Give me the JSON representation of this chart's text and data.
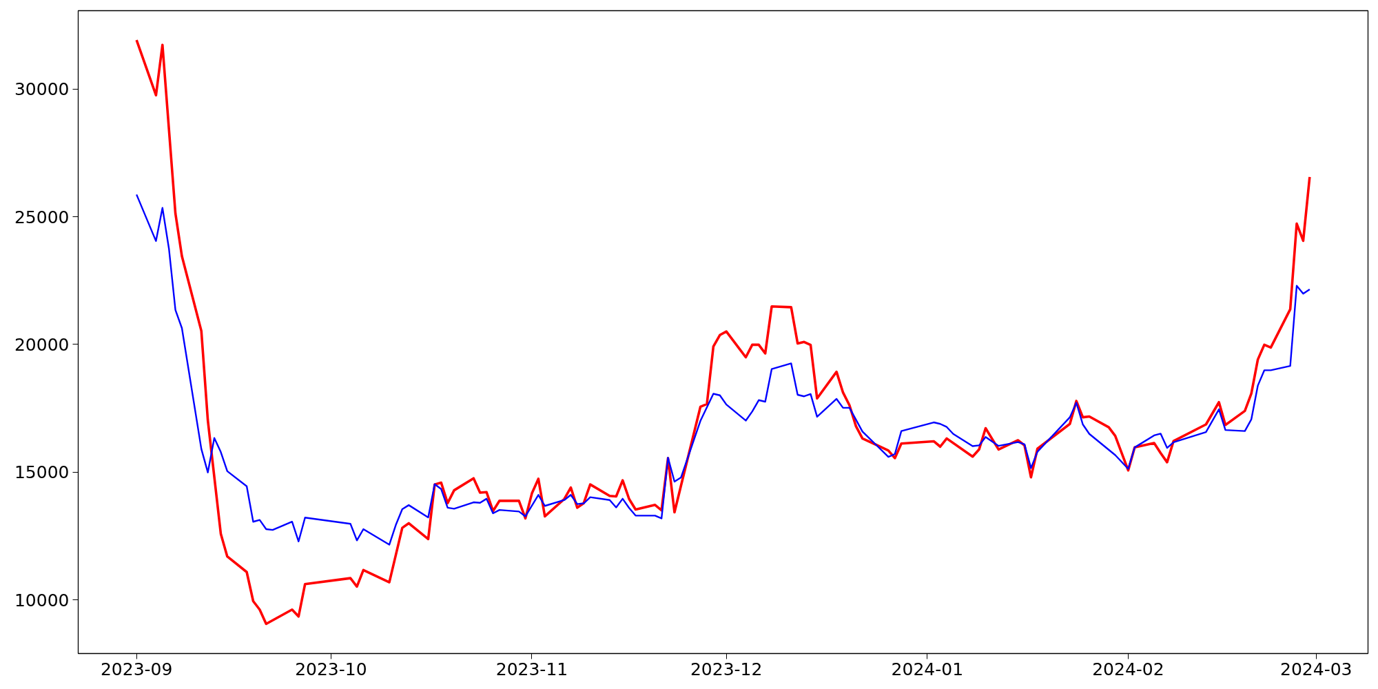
{
  "chart_data": {
    "type": "line",
    "xlim": [
      "2023-08-23",
      "2024-03-09"
    ],
    "xticks": [
      {
        "value": "2023-09-01",
        "label": "2023-09"
      },
      {
        "value": "2023-10-01",
        "label": "2023-10"
      },
      {
        "value": "2023-11-01",
        "label": "2023-11"
      },
      {
        "value": "2023-12-01",
        "label": "2023-12"
      },
      {
        "value": "2024-01-01",
        "label": "2024-01"
      },
      {
        "value": "2024-02-01",
        "label": "2024-02"
      },
      {
        "value": "2024-03-01",
        "label": "2024-03"
      }
    ],
    "ylim": [
      7900,
      33070
    ],
    "yticks": [
      10000,
      15000,
      20000,
      25000,
      30000
    ],
    "grid": false,
    "marker": "none",
    "line_style": "solid",
    "series": [
      {
        "color": "#ff0000",
        "x": [
          "2023-09-01",
          "2023-09-04",
          "2023-09-05",
          "2023-09-07",
          "2023-09-08",
          "2023-09-11",
          "2023-09-12",
          "2023-09-14",
          "2023-09-15",
          "2023-09-18",
          "2023-09-19",
          "2023-09-20",
          "2023-09-21",
          "2023-09-25",
          "2023-09-26",
          "2023-09-27",
          "2023-10-04",
          "2023-10-05",
          "2023-10-06",
          "2023-10-10",
          "2023-10-12",
          "2023-10-13",
          "2023-10-16",
          "2023-10-17",
          "2023-10-18",
          "2023-10-19",
          "2023-10-20",
          "2023-10-23",
          "2023-10-24",
          "2023-10-25",
          "2023-10-26",
          "2023-10-27",
          "2023-10-30",
          "2023-10-31",
          "2023-11-01",
          "2023-11-02",
          "2023-11-03",
          "2023-11-06",
          "2023-11-07",
          "2023-11-08",
          "2023-11-09",
          "2023-11-10",
          "2023-11-13",
          "2023-11-14",
          "2023-11-15",
          "2023-11-16",
          "2023-11-17",
          "2023-11-20",
          "2023-11-21",
          "2023-11-22",
          "2023-11-23",
          "2023-11-24",
          "2023-11-27",
          "2023-11-28",
          "2023-11-29",
          "2023-11-30",
          "2023-12-01",
          "2023-12-04",
          "2023-12-05",
          "2023-12-06",
          "2023-12-07",
          "2023-12-08",
          "2023-12-11",
          "2023-12-12",
          "2023-12-13",
          "2023-12-14",
          "2023-12-15",
          "2023-12-18",
          "2023-12-19",
          "2023-12-20",
          "2023-12-21",
          "2023-12-22",
          "2023-12-26",
          "2023-12-27",
          "2023-12-28",
          "2024-01-02",
          "2024-01-03",
          "2024-01-04",
          "2024-01-08",
          "2024-01-09",
          "2024-01-10",
          "2024-01-12",
          "2024-01-15",
          "2024-01-16",
          "2024-01-17",
          "2024-01-18",
          "2024-01-23",
          "2024-01-24",
          "2024-01-25",
          "2024-01-26",
          "2024-01-29",
          "2024-01-30",
          "2024-02-01",
          "2024-02-02",
          "2024-02-05",
          "2024-02-06",
          "2024-02-07",
          "2024-02-08",
          "2024-02-13",
          "2024-02-15",
          "2024-02-16",
          "2024-02-19",
          "2024-02-20",
          "2024-02-21",
          "2024-02-22",
          "2024-02-23",
          "2024-02-26",
          "2024-02-27",
          "2024-02-28",
          "2024-02-29"
        ],
        "values": [
          31920,
          29760,
          31730,
          25130,
          23460,
          20530,
          17030,
          12590,
          11700,
          11090,
          9950,
          9620,
          9060,
          9620,
          9350,
          10620,
          10850,
          10520,
          11170,
          10690,
          12820,
          13000,
          12380,
          14520,
          14590,
          13790,
          14290,
          14760,
          14200,
          14220,
          13480,
          13880,
          13880,
          13190,
          14170,
          14740,
          13270,
          13950,
          14400,
          13610,
          13790,
          14520,
          14070,
          14050,
          14680,
          13950,
          13540,
          13720,
          13510,
          15550,
          13430,
          14470,
          17560,
          17670,
          19920,
          20370,
          20510,
          19500,
          19990,
          19990,
          19650,
          21490,
          21460,
          20040,
          20100,
          19980,
          17890,
          18930,
          18120,
          17620,
          16800,
          16320,
          15850,
          15550,
          16120,
          16210,
          16000,
          16320,
          15610,
          15890,
          16720,
          15890,
          16250,
          16050,
          14800,
          15920,
          16890,
          17790,
          17150,
          17180,
          16760,
          16420,
          15070,
          15970,
          16140,
          15750,
          15390,
          16220,
          16870,
          17740,
          16850,
          17400,
          18080,
          19410,
          19990,
          19880,
          21380,
          24730,
          24060,
          26560
        ]
      },
      {
        "color": "#0000ff",
        "x": [
          "2023-09-01",
          "2023-09-04",
          "2023-09-05",
          "2023-09-06",
          "2023-09-07",
          "2023-09-08",
          "2023-09-11",
          "2023-09-12",
          "2023-09-13",
          "2023-09-14",
          "2023-09-15",
          "2023-09-18",
          "2023-09-19",
          "2023-09-20",
          "2023-09-21",
          "2023-09-22",
          "2023-09-25",
          "2023-09-26",
          "2023-09-27",
          "2023-10-04",
          "2023-10-05",
          "2023-10-06",
          "2023-10-10",
          "2023-10-11",
          "2023-10-12",
          "2023-10-13",
          "2023-10-16",
          "2023-10-17",
          "2023-10-18",
          "2023-10-19",
          "2023-10-20",
          "2023-10-23",
          "2023-10-24",
          "2023-10-25",
          "2023-10-26",
          "2023-10-27",
          "2023-10-30",
          "2023-10-31",
          "2023-11-02",
          "2023-11-03",
          "2023-11-06",
          "2023-11-07",
          "2023-11-08",
          "2023-11-09",
          "2023-11-10",
          "2023-11-13",
          "2023-11-14",
          "2023-11-15",
          "2023-11-16",
          "2023-11-17",
          "2023-11-20",
          "2023-11-21",
          "2023-11-22",
          "2023-11-23",
          "2023-11-24",
          "2023-11-27",
          "2023-11-29",
          "2023-11-30",
          "2023-12-01",
          "2023-12-04",
          "2023-12-05",
          "2023-12-06",
          "2023-12-07",
          "2023-12-08",
          "2023-12-11",
          "2023-12-12",
          "2023-12-13",
          "2023-12-14",
          "2023-12-15",
          "2023-12-18",
          "2023-12-19",
          "2023-12-20",
          "2023-12-22",
          "2023-12-26",
          "2023-12-27",
          "2023-12-28",
          "2024-01-02",
          "2024-01-03",
          "2024-01-04",
          "2024-01-05",
          "2024-01-08",
          "2024-01-09",
          "2024-01-10",
          "2024-01-12",
          "2024-01-15",
          "2024-01-16",
          "2024-01-17",
          "2024-01-18",
          "2024-01-23",
          "2024-01-24",
          "2024-01-25",
          "2024-01-26",
          "2024-01-30",
          "2024-02-01",
          "2024-02-02",
          "2024-02-05",
          "2024-02-06",
          "2024-02-07",
          "2024-02-08",
          "2024-02-13",
          "2024-02-15",
          "2024-02-16",
          "2024-02-19",
          "2024-02-20",
          "2024-02-21",
          "2024-02-22",
          "2024-02-23",
          "2024-02-26",
          "2024-02-27",
          "2024-02-28",
          "2024-02-29"
        ],
        "values": [
          25870,
          24050,
          25350,
          23750,
          21350,
          20640,
          15910,
          14990,
          16340,
          15790,
          15040,
          14450,
          13060,
          13130,
          12770,
          12740,
          13060,
          12290,
          13220,
          12980,
          12330,
          12770,
          12160,
          12930,
          13550,
          13710,
          13230,
          14530,
          14340,
          13610,
          13570,
          13820,
          13800,
          13960,
          13390,
          13520,
          13460,
          13270,
          14110,
          13680,
          13910,
          14110,
          13750,
          13780,
          14020,
          13910,
          13620,
          13960,
          13600,
          13300,
          13300,
          13190,
          15570,
          14630,
          14790,
          17010,
          18070,
          18010,
          17650,
          17020,
          17380,
          17820,
          17760,
          19040,
          19260,
          18030,
          17970,
          18060,
          17170,
          17870,
          17520,
          17520,
          16590,
          15600,
          15710,
          16610,
          16950,
          16890,
          16770,
          16500,
          16020,
          16050,
          16380,
          16030,
          16180,
          16090,
          15160,
          15800,
          17150,
          17720,
          16870,
          16500,
          15670,
          15130,
          15970,
          16440,
          16510,
          15950,
          16170,
          16570,
          17460,
          16650,
          16610,
          17070,
          18390,
          18990,
          18990,
          19160,
          22300,
          21990,
          22160
        ]
      }
    ]
  }
}
